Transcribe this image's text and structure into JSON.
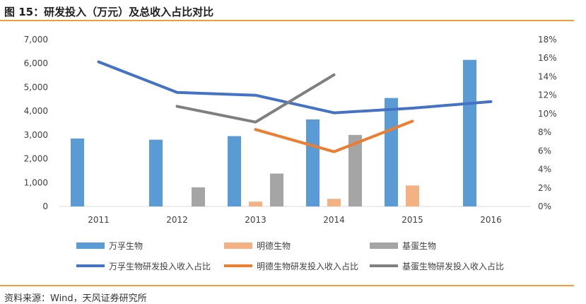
{
  "figure": {
    "title": "图 15：研发投入（万元）及总收入占比对比",
    "source": "资料来源：Wind，天风证券研究所"
  },
  "chart_data": {
    "type": "bar",
    "categories": [
      "2011",
      "2012",
      "2013",
      "2014",
      "2015",
      "2016"
    ],
    "ylim": [
      0,
      7000
    ],
    "y_ticks": [
      "0",
      "1,000",
      "2,000",
      "3,000",
      "4,000",
      "5,000",
      "6,000",
      "7,000"
    ],
    "y2lim": [
      0,
      18
    ],
    "y2_ticks": [
      "0%",
      "2%",
      "4%",
      "6%",
      "8%",
      "10%",
      "12%",
      "14%",
      "16%",
      "18%"
    ],
    "grid": false,
    "legend_position": "bottom",
    "bar_series": [
      {
        "name": "万孚生物",
        "color": "#5b9bd5",
        "values": [
          2850,
          2800,
          2950,
          3650,
          4550,
          6150
        ]
      },
      {
        "name": "明德生物",
        "color": "#f4b183",
        "values": [
          null,
          null,
          200,
          320,
          880,
          null
        ]
      },
      {
        "name": "基蛋生物",
        "color": "#a5a5a5",
        "values": [
          null,
          800,
          1380,
          3000,
          null,
          null
        ]
      }
    ],
    "line_series": [
      {
        "name": "万孚生物研发投入收入占比",
        "color": "#4472c4",
        "values": [
          15.6,
          12.3,
          12.0,
          10.1,
          10.6,
          11.3
        ]
      },
      {
        "name": "明德生物研发投入收入占比",
        "color": "#ed7d31",
        "values": [
          null,
          null,
          8.3,
          5.9,
          9.2,
          null
        ]
      },
      {
        "name": "基蛋生物研发投入收入占比",
        "color": "#7f7f7f",
        "values": [
          null,
          10.8,
          9.1,
          14.2,
          null,
          null
        ]
      }
    ]
  }
}
